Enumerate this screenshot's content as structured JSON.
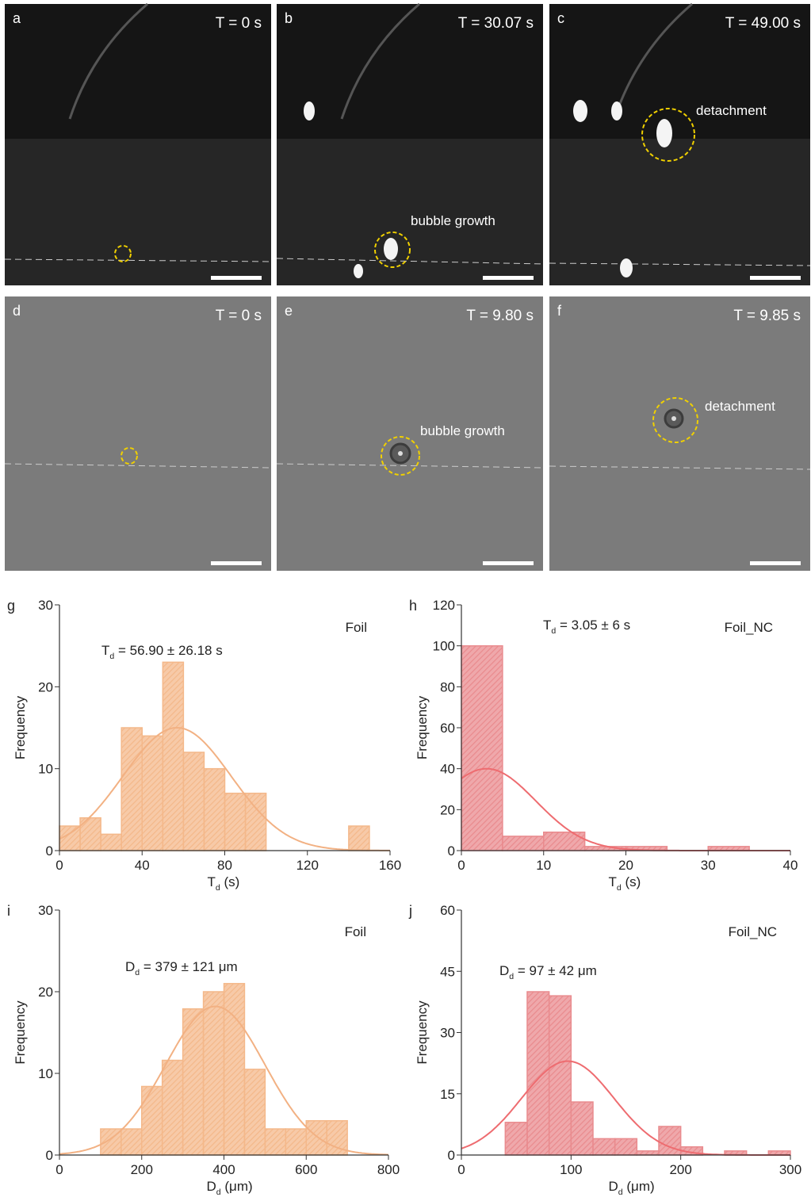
{
  "panels": [
    {
      "letter": "a",
      "time": "T = 0 s"
    },
    {
      "letter": "b",
      "time": "T = 30.07 s",
      "note": "bubble growth"
    },
    {
      "letter": "c",
      "time": "T = 49.00 s",
      "note": "detachment"
    },
    {
      "letter": "d",
      "time": "T = 0 s"
    },
    {
      "letter": "e",
      "time": "T = 9.80 s",
      "note": "bubble growth"
    },
    {
      "letter": "f",
      "time": "T = 9.85 s",
      "note": "detachment"
    }
  ],
  "chart_data": [
    {
      "type": "histogram",
      "letter": "g",
      "tag": "Foil",
      "color": "#f4b88a",
      "line_color": "#f2b183",
      "annotation": {
        "main": "T",
        "sub": "d",
        "rest": " = 56.90 ± 26.18 s"
      },
      "xlabel": {
        "main": "T",
        "sub": "d",
        "rest": " (s)"
      },
      "ylabel": "Frequency",
      "bins": [
        0,
        10,
        20,
        30,
        40,
        50,
        60,
        70,
        80,
        90,
        100,
        110,
        120,
        130,
        140,
        150
      ],
      "values": [
        3,
        4,
        2,
        15,
        14,
        23,
        12,
        10,
        7,
        7,
        0,
        0,
        0,
        0,
        3
      ],
      "fit": {
        "mean": 56.9,
        "sd": 26.18,
        "peak": 15
      },
      "xlim": [
        0,
        160
      ],
      "xticks": [
        0,
        40,
        80,
        120,
        160
      ],
      "ylim": [
        0,
        30
      ],
      "yticks": [
        0,
        10,
        20,
        30
      ]
    },
    {
      "type": "histogram",
      "letter": "h",
      "tag": "Foil_NC",
      "color": "#e98b8e",
      "line_color": "#ee6c70",
      "annotation": {
        "main": "T",
        "sub": "d",
        "rest": " = 3.05 ± 6 s"
      },
      "xlabel": {
        "main": "T",
        "sub": "d",
        "rest": " (s)"
      },
      "ylabel": "Frequency",
      "bins": [
        0,
        5,
        10,
        15,
        20,
        25,
        30,
        35
      ],
      "values": [
        100,
        7,
        9,
        2,
        2,
        0,
        2
      ],
      "fit": {
        "mean": 3.05,
        "sd": 6,
        "peak": 40
      },
      "xlim": [
        0,
        40
      ],
      "xticks": [
        0,
        10,
        20,
        30,
        40
      ],
      "ylim": [
        0,
        120
      ],
      "yticks": [
        0,
        20,
        40,
        60,
        80,
        100,
        120
      ]
    },
    {
      "type": "histogram",
      "letter": "i",
      "tag": "Foil",
      "color": "#f4b88a",
      "line_color": "#f2b183",
      "annotation": {
        "main": "D",
        "sub": "d",
        "rest": " = 379 ± 121 μm"
      },
      "xlabel": {
        "main": "D",
        "sub": "d",
        "rest": " (μm)"
      },
      "ylabel": "Frequency",
      "bins": [
        100,
        150,
        200,
        250,
        300,
        350,
        400,
        450,
        500,
        550,
        600,
        650,
        700
      ],
      "values": [
        3.2,
        3.2,
        8.4,
        11.6,
        17.9,
        20,
        21,
        10.5,
        3.2,
        3.2,
        4.2,
        4.2
      ],
      "fit": {
        "mean": 379,
        "sd": 121,
        "peak": 18.2
      },
      "xlim": [
        0,
        800
      ],
      "xticks": [
        0,
        200,
        400,
        600,
        800
      ],
      "ylim": [
        0,
        30
      ],
      "yticks": [
        0,
        10,
        20,
        30
      ]
    },
    {
      "type": "histogram",
      "letter": "j",
      "tag": "Foil_NC",
      "color": "#e98b8e",
      "line_color": "#ee6c70",
      "annotation": {
        "main": "D",
        "sub": "d",
        "rest": " = 97 ± 42 μm"
      },
      "xlabel": {
        "main": "D",
        "sub": "d",
        "rest": " (μm)"
      },
      "ylabel": "Frequency",
      "bins": [
        40,
        60,
        80,
        100,
        120,
        140,
        160,
        180,
        200,
        220,
        240,
        260,
        280,
        300
      ],
      "values": [
        8,
        40,
        39,
        13,
        4,
        4,
        1,
        7,
        2,
        0,
        1,
        0,
        1
      ],
      "fit": {
        "mean": 97,
        "sd": 42,
        "peak": 23
      },
      "xlim": [
        0,
        300
      ],
      "xticks": [
        0,
        100,
        200,
        300
      ],
      "ylim": [
        0,
        60
      ],
      "yticks": [
        0,
        15,
        30,
        45,
        60
      ]
    }
  ]
}
